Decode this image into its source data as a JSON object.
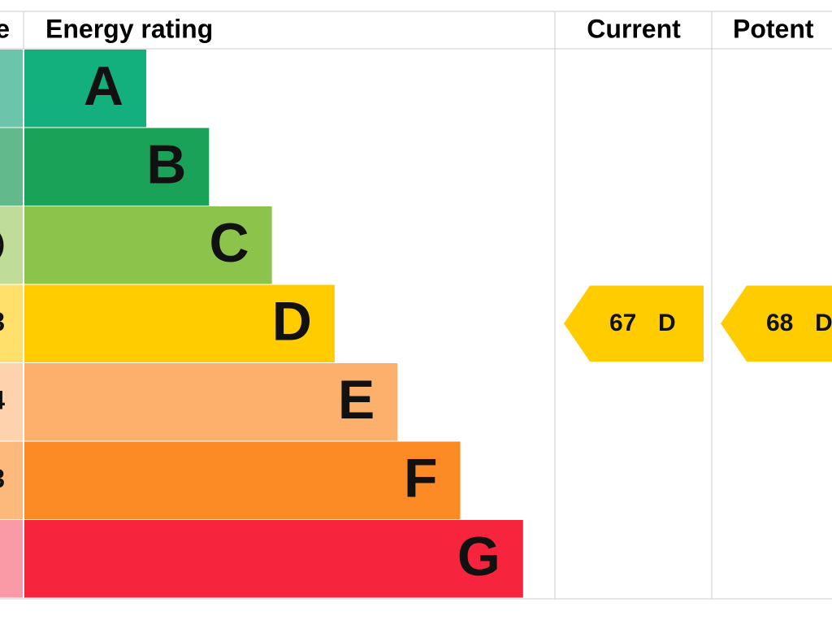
{
  "header": {
    "score": "e",
    "rating": "Energy rating",
    "current": "Current",
    "potential": "Potent"
  },
  "bands": [
    {
      "letter": "A",
      "color": "#13b07d",
      "light": "#6cc4ab"
    },
    {
      "letter": "B",
      "color": "#1ba259",
      "light": "#62b98c"
    },
    {
      "letter": "C",
      "color": "#8cc34b",
      "light": "#bfdc99",
      "score_fragment": ")"
    },
    {
      "letter": "D",
      "color": "#ffcc00",
      "light": "#ffe06a",
      "score_fragment": "3"
    },
    {
      "letter": "E",
      "color": "#fdb06c",
      "light": "#fdd2ad",
      "score_fragment": "4"
    },
    {
      "letter": "F",
      "color": "#fc8a25",
      "light": "#fdb87c",
      "score_fragment": "3"
    },
    {
      "letter": "G",
      "color": "#f6243c",
      "light": "#f99aa6"
    }
  ],
  "current": {
    "score": 67,
    "band": "D"
  },
  "potential": {
    "score": 68,
    "band": "D"
  }
}
